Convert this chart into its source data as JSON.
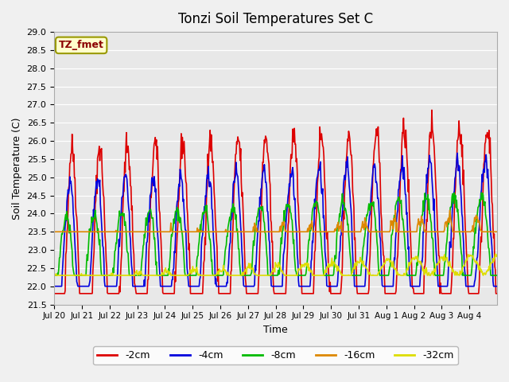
{
  "title": "Tonzi Soil Temperatures Set C",
  "xlabel": "Time",
  "ylabel": "Soil Temperature (C)",
  "ylim": [
    21.5,
    29.0
  ],
  "yticks": [
    21.5,
    22.0,
    22.5,
    23.0,
    23.5,
    24.0,
    24.5,
    25.0,
    25.5,
    26.0,
    26.5,
    27.0,
    27.5,
    28.0,
    28.5,
    29.0
  ],
  "xtick_labels": [
    "Jul 20",
    "Jul 21",
    "Jul 22",
    "Jul 23",
    "Jul 24",
    "Jul 25",
    "Jul 26",
    "Jul 27",
    "Jul 28",
    "Jul 29",
    "Jul 30",
    "Jul 31",
    "Aug 1",
    "Aug 2",
    "Aug 3",
    "Aug 4"
  ],
  "colors": {
    "-2cm": "#dd0000",
    "-4cm": "#0000dd",
    "-8cm": "#00bb00",
    "-16cm": "#dd8800",
    "-32cm": "#dddd00"
  },
  "legend_label_box": "TZ_fmet",
  "background_color": "#e8e8e8",
  "plot_bg_color": "#e8e8e8",
  "n_days": 16,
  "pts_per_day": 48
}
